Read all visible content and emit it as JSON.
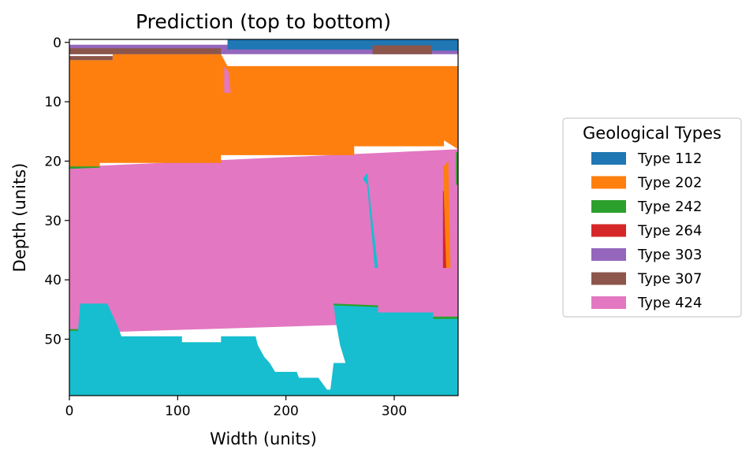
{
  "chart_data": {
    "type": "heatmap",
    "title": "Prediction (top to bottom)",
    "xlabel": "Width (units)",
    "ylabel": "Depth (units)",
    "xlim": [
      0,
      359
    ],
    "ylim": [
      59.5,
      -0.5
    ],
    "xticks": [
      0,
      100,
      200,
      300
    ],
    "yticks": [
      0,
      10,
      20,
      30,
      40,
      50
    ],
    "legend": {
      "title": "Geological Types",
      "placement": "center-right",
      "entries": [
        {
          "label": "Type 112",
          "color": "#1f77b4"
        },
        {
          "label": "Type 202",
          "color": "#ff7f0e"
        },
        {
          "label": "Type 242",
          "color": "#2ca02c"
        },
        {
          "label": "Type 264",
          "color": "#d62728"
        },
        {
          "label": "Type 303",
          "color": "#9467bd"
        },
        {
          "label": "Type 307",
          "color": "#8c564b"
        },
        {
          "label": "Type 424",
          "color": "#e377c2"
        }
      ]
    },
    "unlabeled_colors": [
      "#17becf"
    ],
    "regions": [
      {
        "color": "#e377c2",
        "points": [
          [
            0,
            21
          ],
          [
            359,
            18
          ],
          [
            359,
            47
          ],
          [
            0,
            49
          ]
        ]
      },
      {
        "color": "#17becf",
        "points": [
          [
            0,
            48.6
          ],
          [
            8,
            48.6
          ],
          [
            10,
            44
          ],
          [
            35,
            44
          ],
          [
            40,
            46
          ],
          [
            45,
            48
          ],
          [
            48,
            49.5
          ],
          [
            104,
            49.5
          ],
          [
            104,
            50.5
          ],
          [
            140,
            50.5
          ],
          [
            140,
            49.5
          ],
          [
            172,
            49.5
          ],
          [
            174,
            51
          ],
          [
            180,
            53
          ],
          [
            185,
            54
          ],
          [
            190,
            55.5
          ],
          [
            210,
            55.5
          ],
          [
            212,
            56.5
          ],
          [
            230,
            56.5
          ],
          [
            238,
            58.5
          ],
          [
            241,
            58.5
          ],
          [
            244,
            54
          ],
          [
            255,
            54
          ],
          [
            250,
            51
          ],
          [
            246,
            47
          ],
          [
            244,
            44
          ],
          [
            285,
            44.5
          ],
          [
            285,
            45.5
          ],
          [
            336,
            45.5
          ],
          [
            336,
            46.5
          ],
          [
            359,
            46.5
          ],
          [
            359,
            59.5
          ],
          [
            0,
            59.5
          ]
        ]
      },
      {
        "color": "#ff7f0e",
        "points": [
          [
            0,
            3
          ],
          [
            40,
            3
          ],
          [
            40,
            2
          ],
          [
            140,
            2
          ],
          [
            146,
            4
          ],
          [
            359,
            4
          ],
          [
            359,
            18
          ],
          [
            346,
            16.5
          ],
          [
            346,
            17.5
          ],
          [
            263,
            17.5
          ],
          [
            263,
            19
          ],
          [
            140,
            19
          ],
          [
            140,
            20.3
          ],
          [
            28,
            20.3
          ],
          [
            28,
            21
          ],
          [
            0,
            21.2
          ]
        ]
      },
      {
        "color": "#e377c2",
        "points": [
          [
            143,
            4
          ],
          [
            147,
            5
          ],
          [
            149,
            8.5
          ],
          [
            143,
            8.5
          ]
        ]
      },
      {
        "color": "#17becf",
        "points": [
          [
            271,
            23
          ],
          [
            275,
            24
          ],
          [
            278,
            30
          ],
          [
            282,
            38
          ],
          [
            285,
            38
          ],
          [
            278,
            27
          ],
          [
            275,
            22
          ]
        ]
      },
      {
        "color": "#d62728",
        "points": [
          [
            345,
            25
          ],
          [
            350,
            25.5
          ],
          [
            350,
            38
          ],
          [
            345,
            38
          ]
        ]
      },
      {
        "color": "#ff7f0e",
        "points": [
          [
            345,
            21
          ],
          [
            350,
            20
          ],
          [
            352,
            38
          ],
          [
            348,
            38
          ]
        ]
      },
      {
        "color": "#9467bd",
        "points": [
          [
            0,
            0.4
          ],
          [
            359,
            0.4
          ],
          [
            359,
            2
          ],
          [
            0,
            2
          ]
        ]
      },
      {
        "color": "#8c564b",
        "points": [
          [
            0,
            1
          ],
          [
            140,
            1
          ],
          [
            140,
            2
          ],
          [
            0,
            2
          ]
        ]
      },
      {
        "color": "#8c564b",
        "points": [
          [
            280,
            0.5
          ],
          [
            335,
            0.5
          ],
          [
            335,
            2
          ],
          [
            280,
            2
          ]
        ]
      },
      {
        "color": "#8c564b",
        "points": [
          [
            0,
            2.3
          ],
          [
            40,
            2.3
          ],
          [
            40,
            3
          ],
          [
            0,
            3
          ]
        ]
      },
      {
        "color": "#1f77b4",
        "points": [
          [
            146,
            -0.5
          ],
          [
            359,
            -0.5
          ],
          [
            359,
            1.4
          ],
          [
            335,
            1.4
          ],
          [
            335,
            0.5
          ],
          [
            280,
            0.5
          ],
          [
            280,
            1.2
          ],
          [
            146,
            1.2
          ]
        ]
      },
      {
        "color": "#2ca02c",
        "points": [
          [
            0,
            20.9
          ],
          [
            28,
            20.9
          ],
          [
            28,
            21.1
          ],
          [
            0,
            21.3
          ]
        ]
      },
      {
        "color": "#2ca02c",
        "points": [
          [
            0,
            48.3
          ],
          [
            8,
            48.3
          ],
          [
            8,
            48.6
          ],
          [
            0,
            48.6
          ]
        ]
      },
      {
        "color": "#2ca02c",
        "points": [
          [
            244,
            44
          ],
          [
            285,
            44.3
          ],
          [
            285,
            44.6
          ],
          [
            244,
            44.3
          ]
        ]
      },
      {
        "color": "#2ca02c",
        "points": [
          [
            336,
            46.2
          ],
          [
            359,
            46.2
          ],
          [
            359,
            46.6
          ],
          [
            336,
            46.6
          ]
        ]
      },
      {
        "color": "#2ca02c",
        "points": [
          [
            357,
            18.5
          ],
          [
            359,
            18.5
          ],
          [
            359,
            24
          ],
          [
            357,
            24
          ]
        ]
      }
    ]
  }
}
